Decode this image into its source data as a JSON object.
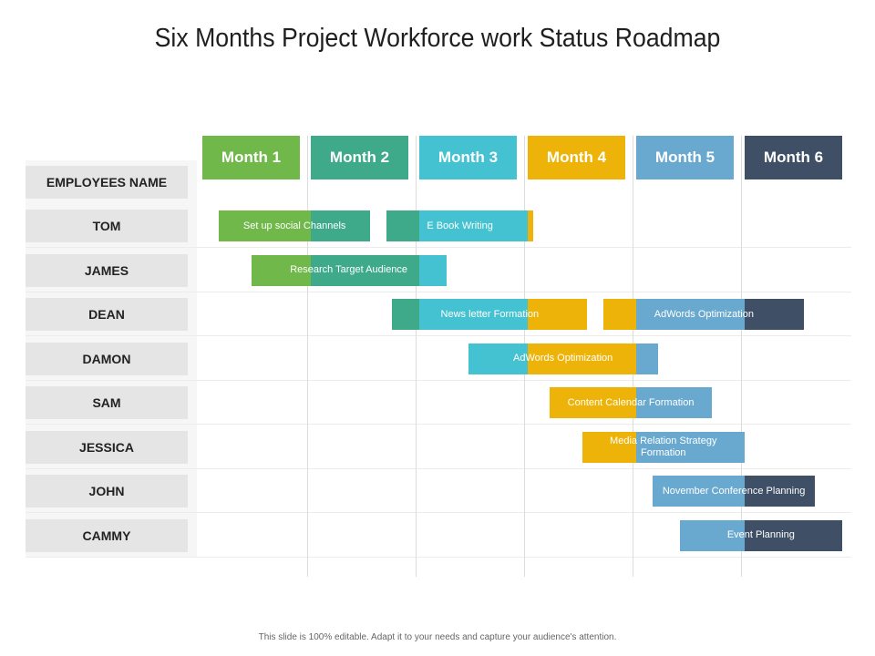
{
  "title": "Six Months Project Workforce work Status Roadmap",
  "months": [
    "Month 1",
    "Month 2",
    "Month 3",
    "Month 4",
    "Month 5",
    "Month 6"
  ],
  "colors": {
    "month1": "#71b84b",
    "month2": "#3eaa8a",
    "month3": "#45c2d1",
    "month4": "#eeb309",
    "month5": "#6aa9cf",
    "month6": "#3f4f66"
  },
  "header_label": "EMPLOYEES NAME",
  "employees": [
    "TOM",
    "JAMES",
    "DEAN",
    "DAMON",
    "SAM",
    "JESSICA",
    "JOHN",
    "CAMMY"
  ],
  "tasks": [
    {
      "employee": "TOM",
      "label": "Set up social  Channels",
      "start_month": 1.15,
      "end_month": 2.55
    },
    {
      "employee": "TOM",
      "label": "E Book Writing",
      "start_month": 2.7,
      "end_month": 4.05
    },
    {
      "employee": "JAMES",
      "label": "Research Target Audience",
      "start_month": 1.45,
      "end_month": 3.25
    },
    {
      "employee": "DEAN",
      "label": "News letter Formation",
      "start_month": 2.75,
      "end_month": 4.55
    },
    {
      "employee": "DEAN",
      "label": "AdWords Optimization",
      "start_month": 4.7,
      "end_month": 6.55
    },
    {
      "employee": "DAMON",
      "label": "AdWords Optimization",
      "start_month": 3.45,
      "end_month": 5.2
    },
    {
      "employee": "SAM",
      "label": "Content Calendar Formation",
      "start_month": 4.2,
      "end_month": 5.7
    },
    {
      "employee": "JESSICA",
      "label": "Media Relation  Strategy Formation",
      "start_month": 4.5,
      "end_month": 6.0
    },
    {
      "employee": "JOHN",
      "label": "November Conference Planning",
      "start_month": 5.15,
      "end_month": 6.65
    },
    {
      "employee": "CAMMY",
      "label": "Event Planning",
      "start_month": 5.4,
      "end_month": 6.9
    }
  ],
  "footer": "This slide is 100% editable.  Adapt it to your needs and capture your audience's attention."
}
